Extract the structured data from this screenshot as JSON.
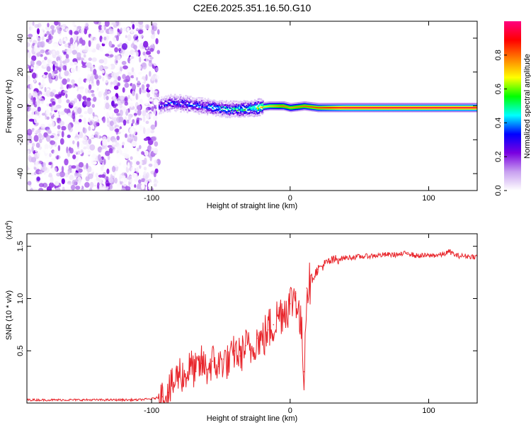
{
  "figure": {
    "title": "C2E6.2025.351.16.50.G10"
  },
  "chart_data": [
    {
      "type": "heatmap",
      "xlabel": "Height of straight line (km)",
      "ylabel": "Frequency (Hz)",
      "xlim": [
        -190,
        135
      ],
      "ylim": [
        -50,
        50
      ],
      "x_ticks": [
        -100,
        0,
        100
      ],
      "x_tick_labels": [
        "-100",
        "0",
        "100"
      ],
      "y_ticks": [
        -40,
        -20,
        0,
        20,
        40
      ],
      "y_tick_labels": [
        "-40",
        "-20",
        "0",
        "20",
        "40"
      ],
      "signal_line": {
        "description_free": true,
        "points": [
          [
            -95,
            0
          ],
          [
            -85,
            2
          ],
          [
            -75,
            1
          ],
          [
            -65,
            0
          ],
          [
            -55,
            -1
          ],
          [
            -45,
            -2
          ],
          [
            -35,
            -2
          ],
          [
            -25,
            -1
          ],
          [
            -15,
            0
          ],
          [
            -5,
            0
          ],
          [
            0,
            -1
          ],
          [
            10,
            0
          ],
          [
            20,
            -1
          ],
          [
            40,
            -1
          ],
          [
            60,
            -1
          ],
          [
            80,
            -1
          ],
          [
            100,
            -1
          ],
          [
            135,
            -1
          ]
        ],
        "amplitude": [
          0.3,
          0.35,
          0.35,
          0.35,
          0.4,
          0.45,
          0.5,
          0.6,
          0.7,
          0.8,
          0.75,
          0.8,
          0.85,
          0.95,
          0.95,
          0.95,
          0.95,
          0.95
        ]
      },
      "noise_region": {
        "x_from": -190,
        "x_to": -95,
        "amplitude_range": [
          0.0,
          0.15
        ]
      },
      "colorbar": {
        "label": "Normalized spectral amplitude",
        "ticks": [
          0.0,
          0.2,
          0.4,
          0.6,
          0.8
        ],
        "tick_labels": [
          "0.0",
          "0.2",
          "0.4",
          "0.6",
          "0.8"
        ],
        "range": [
          0,
          1
        ],
        "colors": [
          "#ffffff",
          "#c8a0f0",
          "#7a00e0",
          "#0000ff",
          "#00ffff",
          "#00ff00",
          "#ffff00",
          "#ff8000",
          "#ff0000",
          "#ff0080"
        ]
      }
    },
    {
      "type": "line",
      "xlabel": "Height of straight line (km)",
      "ylabel": "SNR (10 * v/v)",
      "y_multiplier": "(x10",
      "y_multiplier_exp": "4",
      "y_multiplier_close": ")",
      "xlim": [
        -190,
        135
      ],
      "ylim": [
        0,
        1.62
      ],
      "x_ticks": [
        -100,
        0,
        100
      ],
      "x_tick_labels": [
        "-100",
        "0",
        "100"
      ],
      "y_ticks": [
        0.5,
        1.0,
        1.5
      ],
      "y_tick_labels": [
        "0.5",
        "1.0",
        "1.5"
      ],
      "color": "#e8242a",
      "series": [
        {
          "name": "SNR",
          "x": [
            -190,
            -170,
            -150,
            -130,
            -110,
            -100,
            -92,
            -88,
            -84,
            -80,
            -76,
            -72,
            -68,
            -64,
            -60,
            -56,
            -52,
            -48,
            -44,
            -40,
            -36,
            -32,
            -28,
            -24,
            -20,
            -16,
            -12,
            -8,
            -4,
            0,
            4,
            8,
            10,
            12,
            16,
            20,
            24,
            28,
            32,
            36,
            40,
            50,
            60,
            70,
            80,
            85,
            90,
            100,
            110,
            115,
            120,
            135
          ],
          "y": [
            0.03,
            0.03,
            0.03,
            0.03,
            0.03,
            0.04,
            0.06,
            0.1,
            0.18,
            0.3,
            0.25,
            0.35,
            0.3,
            0.38,
            0.32,
            0.4,
            0.35,
            0.42,
            0.38,
            0.5,
            0.45,
            0.55,
            0.5,
            0.62,
            0.6,
            0.7,
            0.75,
            0.85,
            0.9,
            0.95,
            1.05,
            0.7,
            0.3,
            1.1,
            1.2,
            1.28,
            1.32,
            1.35,
            1.37,
            1.38,
            1.39,
            1.4,
            1.41,
            1.42,
            1.42,
            1.44,
            1.41,
            1.41,
            1.42,
            1.45,
            1.41,
            1.4
          ]
        }
      ]
    }
  ]
}
